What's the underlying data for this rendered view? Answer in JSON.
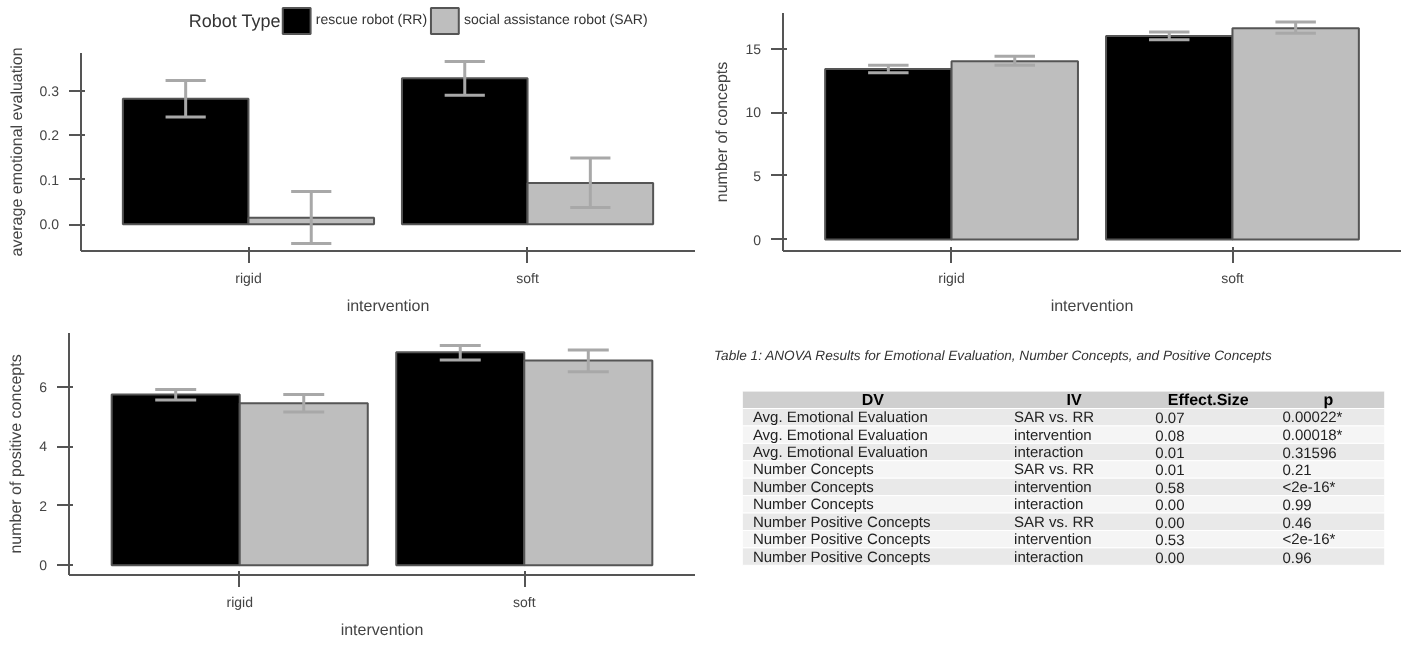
{
  "chart_data": [
    {
      "type": "bar",
      "legend_title": "Robot Type",
      "legend": "top",
      "xlabel": "intervention",
      "ylabel": "average emotional evaluation",
      "categories": [
        "rigid",
        "soft"
      ],
      "ylim": [
        -0.06,
        0.385
      ],
      "yticks": [
        {
          "value": 0,
          "label": "0.0"
        },
        {
          "value": 0.1,
          "label": "0.1"
        },
        {
          "value": 0.2,
          "label": "0.2"
        },
        {
          "value": 0.3,
          "label": "0.3"
        }
      ],
      "series": [
        {
          "name": "rescue robot (RR)",
          "color": "#000000",
          "values": [
            0.282,
            0.328
          ],
          "errors": [
            [
              0.241,
              0.323
            ],
            [
              0.29,
              0.366
            ]
          ]
        },
        {
          "name": "social assistance robot (SAR)",
          "color": "#bebebe",
          "values": [
            0.015,
            0.093
          ],
          "errors": [
            [
              -0.043,
              0.074
            ],
            [
              0.038,
              0.149
            ]
          ]
        }
      ]
    },
    {
      "type": "bar",
      "xlabel": "intervention",
      "ylabel": "number of concepts",
      "categories": [
        "rigid",
        "soft"
      ],
      "ylim": [
        -0.9,
        17.8
      ],
      "yticks": [
        0,
        5,
        10,
        15
      ],
      "series": [
        {
          "color": "#000000",
          "values": [
            13.4,
            16.0
          ],
          "errors": [
            [
              13.1,
              13.7
            ],
            [
              15.7,
              16.3
            ]
          ]
        },
        {
          "color": "#bebebe",
          "values": [
            14.0,
            16.6
          ],
          "errors": [
            [
              13.7,
              14.4
            ],
            [
              16.2,
              17.1
            ]
          ]
        }
      ]
    },
    {
      "type": "bar",
      "xlabel": "intervention",
      "ylabel": "number of positive concepts",
      "categories": [
        "rigid",
        "soft"
      ],
      "ylim": [
        -0.33,
        7.8
      ],
      "yticks": [
        0,
        2,
        4,
        6
      ],
      "series": [
        {
          "color": "#000000",
          "values": [
            5.73,
            7.15
          ],
          "errors": [
            [
              5.55,
              5.9
            ],
            [
              6.89,
              7.38
            ]
          ]
        },
        {
          "color": "#bebebe",
          "values": [
            5.44,
            6.88
          ],
          "errors": [
            [
              5.15,
              5.73
            ],
            [
              6.5,
              7.23
            ]
          ]
        }
      ]
    },
    {
      "type": "other",
      "title": "Table 1: ANOVA Results for Emotional Evaluation, Number Concepts, and Positive Concepts",
      "categories": [
        "DV",
        "IV",
        "Effect.Size",
        "p"
      ],
      "cell_labels": [
        [
          "Avg. Emotional Evaluation",
          "SAR vs. RR",
          "0.07",
          "0.00022*"
        ],
        [
          "Avg. Emotional Evaluation",
          "intervention",
          "0.08",
          "0.00018*"
        ],
        [
          "Avg. Emotional Evaluation",
          "interaction",
          "0.01",
          "0.31596"
        ],
        [
          "Number Concepts",
          "SAR vs. RR",
          "0.01",
          "0.21"
        ],
        [
          "Number Concepts",
          "intervention",
          "0.58",
          "<2e-16*"
        ],
        [
          "Number Concepts",
          "interaction",
          "0.00",
          "0.99"
        ],
        [
          "Number Positive Concepts",
          "SAR vs. RR",
          "0.00",
          "0.46"
        ],
        [
          "Number Positive Concepts",
          "intervention",
          "0.53",
          "<2e-16*"
        ],
        [
          "Number Positive Concepts",
          "interaction",
          "0.00",
          "0.96"
        ]
      ]
    }
  ]
}
